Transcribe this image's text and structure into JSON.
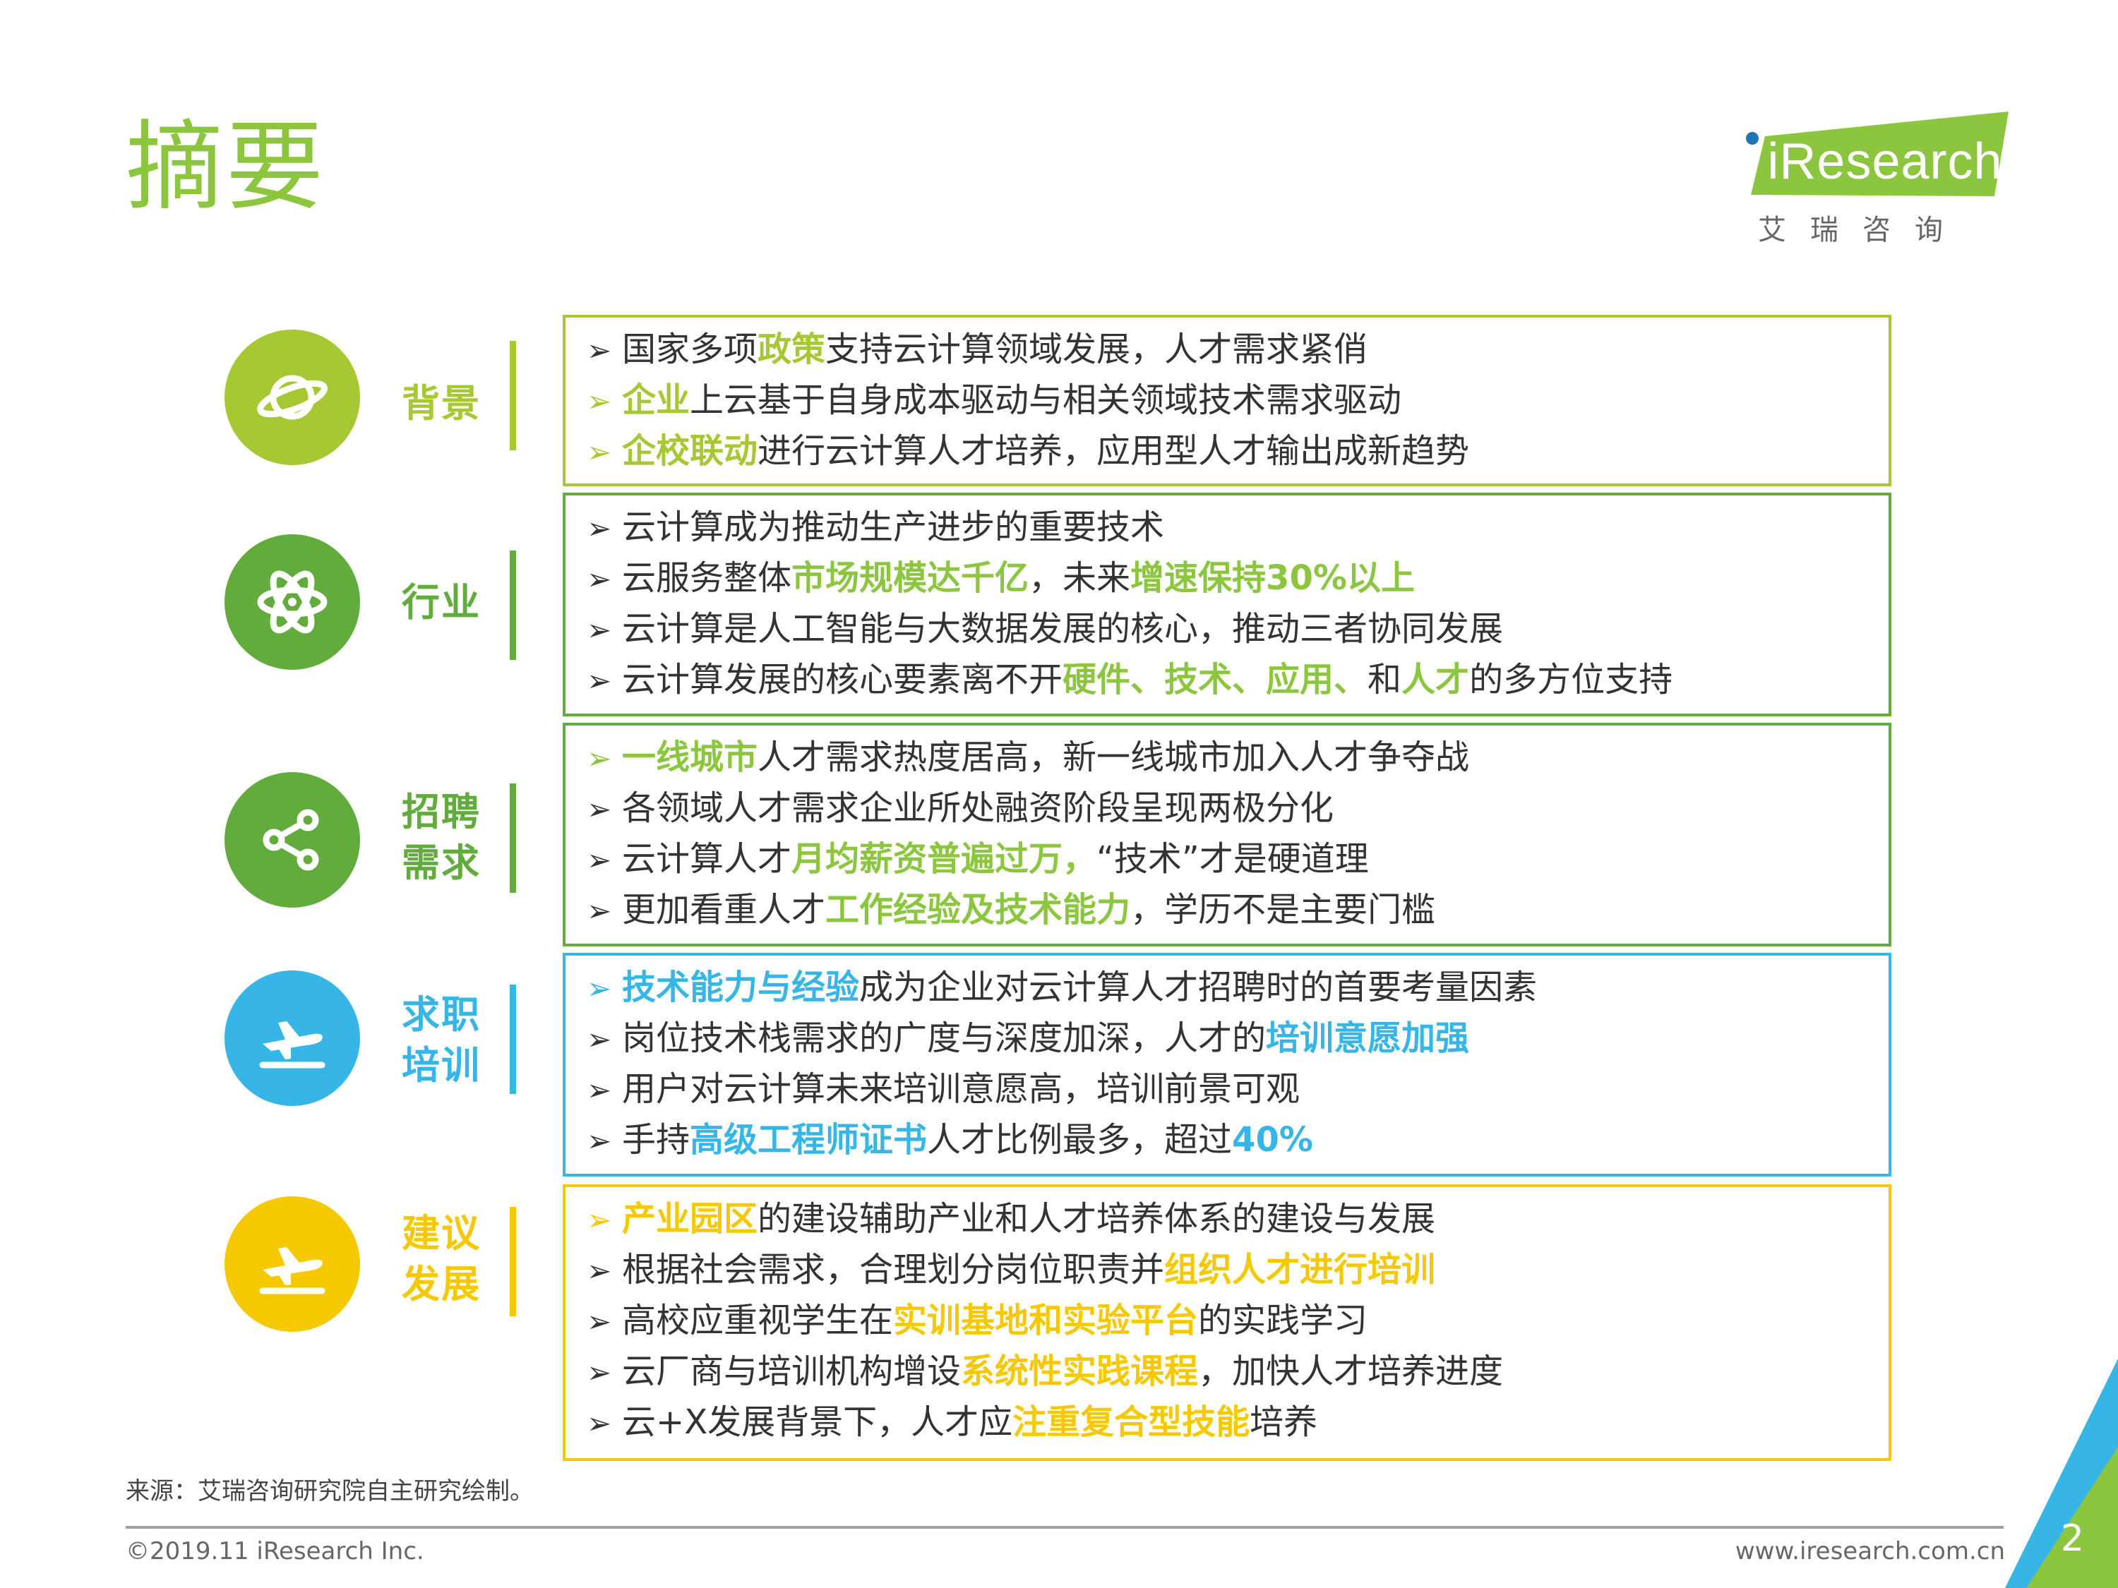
{
  "page": {
    "title": "摘要",
    "logo_text": "iResearch",
    "logo_sub": "艾瑞咨询",
    "source": "来源：艾瑞咨询研究院自主研究绘制。",
    "copyright": "©2019.11 iResearch Inc.",
    "website": "www.iresearch.com.cn",
    "page_number": "2"
  },
  "colors": {
    "lime": "#a6c832",
    "green1": "#8cc63f",
    "green2": "#62ac3e",
    "blue": "#35b6e6",
    "yellow": "#f5c800",
    "text": "#333333"
  },
  "sections": [
    {
      "label_lines": [
        "背景"
      ],
      "icon": "planet-icon",
      "items": [
        [
          {
            "t": "国家多项"
          },
          {
            "t": "政策",
            "hl": true
          },
          {
            "t": "支持云计算领域发展，人才需求紧俏"
          }
        ],
        [
          {
            "t": "企业",
            "hl": true
          },
          {
            "t": "上云基于自身成本驱动与相关领域技术需求驱动"
          }
        ],
        [
          {
            "t": "企校联动",
            "hl": true
          },
          {
            "t": "进行云计算人才培养，应用型人才输出成新趋势"
          }
        ]
      ]
    },
    {
      "label_lines": [
        "行业"
      ],
      "icon": "atom-icon",
      "items": [
        [
          {
            "t": "云计算成为推动生产进步的重要技术"
          }
        ],
        [
          {
            "t": "云服务整体"
          },
          {
            "t": "市场规模达千亿",
            "hl": true
          },
          {
            "t": "，未来"
          },
          {
            "t": "增速保持30%以上",
            "hl": true
          }
        ],
        [
          {
            "t": "云计算是人工智能与大数据发展的核心，推动三者协同发展"
          }
        ],
        [
          {
            "t": "云计算发展的核心要素离不开"
          },
          {
            "t": "硬件、技术、应用、",
            "hl": true
          },
          {
            "t": "和"
          },
          {
            "t": "人才",
            "hl": true
          },
          {
            "t": "的多方位支持"
          }
        ]
      ]
    },
    {
      "label_lines": [
        "招聘",
        "需求"
      ],
      "icon": "share-icon",
      "items": [
        [
          {
            "t": "一线城市",
            "hl": true
          },
          {
            "t": "人才需求热度居高，新一线城市加入人才争夺战"
          }
        ],
        [
          {
            "t": "各领域人才需求企业所处融资阶段呈现两极分化"
          }
        ],
        [
          {
            "t": "云计算人才"
          },
          {
            "t": "月均薪资普遍过万，",
            "hl": true
          },
          {
            "t": "“技术”才是硬道理"
          }
        ],
        [
          {
            "t": "更加看重人才"
          },
          {
            "t": "工作经验及技术能力",
            "hl": true
          },
          {
            "t": "，学历不是主要门槛"
          }
        ]
      ]
    },
    {
      "label_lines": [
        "求职",
        "培训"
      ],
      "icon": "airplane-icon",
      "items": [
        [
          {
            "t": "技术能力与经验",
            "hl": true
          },
          {
            "t": "成为企业对云计算人才招聘时的首要考量因素"
          }
        ],
        [
          {
            "t": "岗位技术栈需求的广度与深度加深，人才的"
          },
          {
            "t": "培训意愿加强",
            "hl": true
          }
        ],
        [
          {
            "t": "用户对云计算未来培训意愿高，培训前景可观"
          }
        ],
        [
          {
            "t": "手持"
          },
          {
            "t": "高级工程师证书",
            "hl": true
          },
          {
            "t": "人才比例最多，超过"
          },
          {
            "t": "40%",
            "hl": true
          }
        ]
      ]
    },
    {
      "label_lines": [
        "建议",
        "发展"
      ],
      "icon": "airplane-icon",
      "items": [
        [
          {
            "t": "产业园区",
            "hl": true
          },
          {
            "t": "的建设辅助产业和人才培养体系的建设与发展"
          }
        ],
        [
          {
            "t": "根据社会需求，合理划分岗位职责并"
          },
          {
            "t": "组织人才进行培训",
            "hl": true
          }
        ],
        [
          {
            "t": "高校应重视学生在"
          },
          {
            "t": "实训基地和实验平台",
            "hl": true
          },
          {
            "t": "的实践学习"
          }
        ],
        [
          {
            "t": "云厂商与培训机构增设"
          },
          {
            "t": "系统性实践课程",
            "hl": true
          },
          {
            "t": "，加快人才培养进度"
          }
        ],
        [
          {
            "t": "云+X发展背景下，人才应"
          },
          {
            "t": "注重复合型技能",
            "hl": true
          },
          {
            "t": "培养"
          }
        ]
      ]
    }
  ]
}
